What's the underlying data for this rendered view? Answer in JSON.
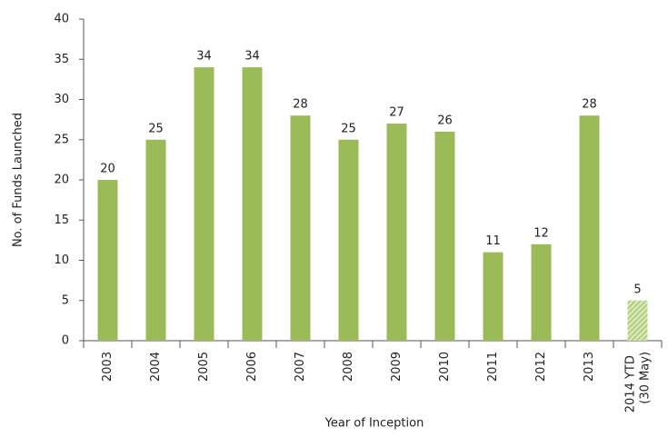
{
  "chart_data": {
    "type": "bar",
    "xlabel": "Year of Inception",
    "ylabel": "No. of Funds Launched",
    "categories": [
      "2003",
      "2004",
      "2005",
      "2006",
      "2007",
      "2008",
      "2009",
      "2010",
      "2011",
      "2012",
      "2013",
      "2014 YTD (30 May)"
    ],
    "values": [
      20,
      25,
      34,
      34,
      28,
      25,
      27,
      26,
      11,
      12,
      28,
      5
    ],
    "color": "#9bbb59",
    "hatched": [
      false,
      false,
      false,
      false,
      false,
      false,
      false,
      false,
      false,
      false,
      false,
      true
    ],
    "ylim": [
      0,
      40
    ],
    "yticks": [
      0,
      5,
      10,
      15,
      20,
      25,
      30,
      35,
      40
    ],
    "grid": false
  }
}
